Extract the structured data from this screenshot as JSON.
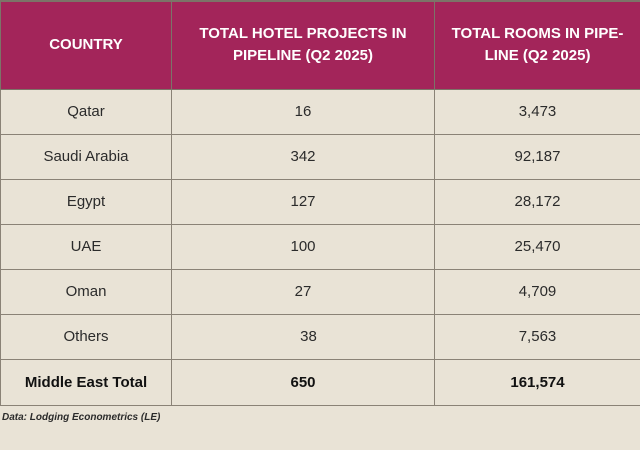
{
  "table": {
    "headers": [
      "COUNTRY",
      "TOTAL HOTEL PROJECTS IN PIPELINE (Q2 2025)",
      "TOTAL ROOMS IN PIPE-LINE (Q2 2025)"
    ],
    "rows": [
      {
        "country": "Qatar",
        "projects": "16",
        "rooms": "3,473"
      },
      {
        "country": "Saudi Arabia",
        "projects": "342",
        "rooms": "92,187"
      },
      {
        "country": "Egypt",
        "projects": "127",
        "rooms": "28,172"
      },
      {
        "country": "UAE",
        "projects": "100",
        "rooms": "25,470"
      },
      {
        "country": "Oman",
        "projects": "27",
        "rooms": "4,709"
      },
      {
        "country": "Others",
        "projects": "38",
        "rooms": "7,563"
      }
    ],
    "total": {
      "label": "Middle East Total",
      "projects": "650",
      "rooms": "161,574"
    }
  },
  "source": "Data: Lodging Econometrics (LE)",
  "colors": {
    "header_bg": "#a3255a",
    "page_bg": "#e9e3d6"
  }
}
